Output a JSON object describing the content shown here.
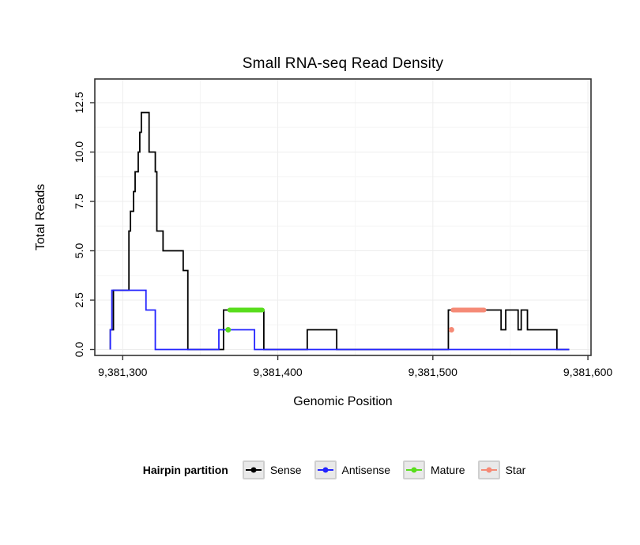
{
  "chart_data": {
    "type": "line",
    "title": "Small RNA-seq Read Density",
    "xlabel": "Genomic Position",
    "ylabel": "Total Reads",
    "xlim": [
      9381282,
      9381602
    ],
    "ylim": [
      -0.3,
      13.7
    ],
    "grid": "major and minor, light gray, panel white with dark border",
    "legend_position": "bottom",
    "x_ticks": [
      {
        "value": 9381300,
        "label": "9,381,300"
      },
      {
        "value": 9381400,
        "label": "9,381,400"
      },
      {
        "value": 9381500,
        "label": "9,381,500"
      },
      {
        "value": 9381600,
        "label": "9,381,600"
      }
    ],
    "y_ticks": [
      {
        "value": 0,
        "label": "0.0"
      },
      {
        "value": 2.5,
        "label": "2.5"
      },
      {
        "value": 5,
        "label": "5.0"
      },
      {
        "value": 7.5,
        "label": "7.5"
      },
      {
        "value": 10,
        "label": "10.0"
      },
      {
        "value": 12.5,
        "label": "12.5"
      }
    ],
    "x_minor": [
      9381350,
      9381450,
      9381550
    ],
    "y_minor": [
      1.25,
      3.75,
      6.25,
      8.75,
      11.25
    ],
    "series": [
      {
        "name": "Sense",
        "color": "#000000",
        "type": "step-line",
        "points": [
          [
            9381292,
            0
          ],
          [
            9381292,
            1
          ],
          [
            9381294,
            1
          ],
          [
            9381294,
            3
          ],
          [
            9381304,
            3
          ],
          [
            9381304,
            6
          ],
          [
            9381305,
            6
          ],
          [
            9381305,
            7
          ],
          [
            9381307,
            7
          ],
          [
            9381307,
            8
          ],
          [
            9381308,
            8
          ],
          [
            9381308,
            9
          ],
          [
            9381310,
            9
          ],
          [
            9381310,
            10
          ],
          [
            9381311,
            10
          ],
          [
            9381311,
            11
          ],
          [
            9381312,
            11
          ],
          [
            9381312,
            12
          ],
          [
            9381317,
            12
          ],
          [
            9381317,
            10
          ],
          [
            9381321,
            10
          ],
          [
            9381321,
            9
          ],
          [
            9381322,
            9
          ],
          [
            9381322,
            6
          ],
          [
            9381326,
            6
          ],
          [
            9381326,
            5
          ],
          [
            9381339,
            5
          ],
          [
            9381339,
            4
          ],
          [
            9381342,
            4
          ],
          [
            9381342,
            0
          ],
          [
            9381365,
            0
          ],
          [
            9381365,
            2
          ],
          [
            9381391,
            2
          ],
          [
            9381391,
            0
          ],
          [
            9381419,
            0
          ],
          [
            9381419,
            1
          ],
          [
            9381438,
            1
          ],
          [
            9381438,
            0
          ],
          [
            9381510,
            0
          ],
          [
            9381510,
            2
          ],
          [
            9381544,
            2
          ],
          [
            9381544,
            1
          ],
          [
            9381547,
            1
          ],
          [
            9381547,
            2
          ],
          [
            9381555,
            2
          ],
          [
            9381555,
            1
          ],
          [
            9381557,
            1
          ],
          [
            9381557,
            2
          ],
          [
            9381561,
            2
          ],
          [
            9381561,
            1
          ],
          [
            9381580,
            1
          ],
          [
            9381580,
            0
          ],
          [
            9381588,
            0
          ]
        ]
      },
      {
        "name": "Antisense",
        "color": "#2424ff",
        "type": "step-line",
        "points": [
          [
            9381292,
            0
          ],
          [
            9381292,
            1
          ],
          [
            9381293,
            1
          ],
          [
            9381293,
            3
          ],
          [
            9381315,
            3
          ],
          [
            9381315,
            2
          ],
          [
            9381321,
            2
          ],
          [
            9381321,
            0
          ],
          [
            9381362,
            0
          ],
          [
            9381362,
            1
          ],
          [
            9381385,
            1
          ],
          [
            9381385,
            0
          ],
          [
            9381588,
            0
          ]
        ]
      }
    ],
    "segments": [
      {
        "name": "Mature",
        "color": "#58dd1c",
        "y": 2,
        "x_start": 9381369,
        "x_end": 9381390,
        "point": [
          9381368,
          1
        ]
      },
      {
        "name": "Star",
        "color": "#f58a76",
        "y": 2,
        "x_start": 9381513,
        "x_end": 9381533,
        "point": [
          9381512,
          1
        ]
      }
    ]
  },
  "legend": {
    "title": "Hairpin partition",
    "items": [
      {
        "label": "Sense",
        "color": "#000000"
      },
      {
        "label": "Antisense",
        "color": "#2424ff"
      },
      {
        "label": "Mature",
        "color": "#58dd1c"
      },
      {
        "label": "Star",
        "color": "#f58a76"
      }
    ]
  },
  "style": {
    "panel_border": "#333333",
    "grid_major": "#ededed",
    "grid_minor": "#f6f6f6",
    "tick_color": "#333333",
    "text_color": "#000000"
  }
}
